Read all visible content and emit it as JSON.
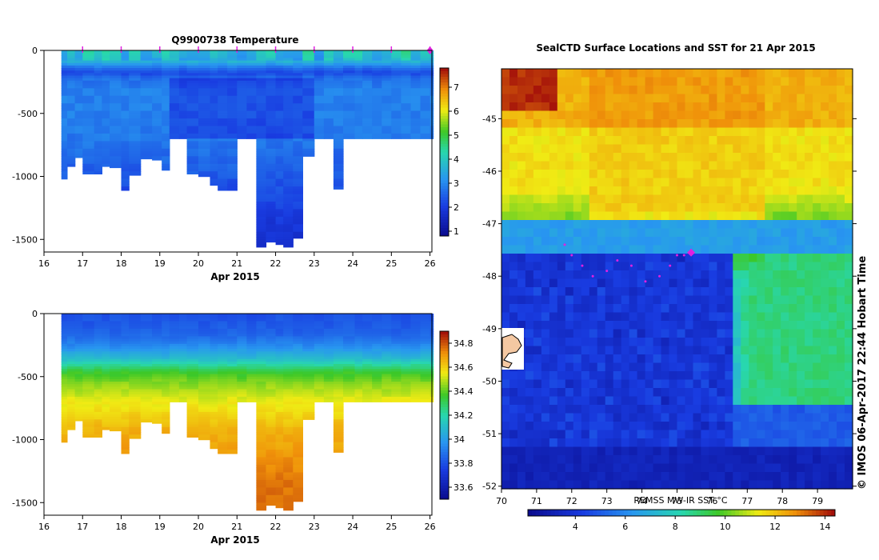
{
  "chart_data": [
    {
      "type": "heatmap",
      "title": "Q9900738  Temperature",
      "xlabel": "Apr 2015",
      "x_ticks": [
        "16",
        "17",
        "18",
        "19",
        "20",
        "21",
        "22",
        "23",
        "24",
        "25",
        "26"
      ],
      "xlim": [
        16,
        26.05
      ],
      "ylim": [
        -1600,
        0
      ],
      "y_ticks": [
        "0",
        "-500",
        "-1000",
        "-1500"
      ],
      "y_tick_values": [
        0,
        -500,
        -1000,
        -1500
      ],
      "colorbar": {
        "ticks": [
          "1",
          "2",
          "3",
          "4",
          "5",
          "6",
          "7"
        ],
        "tick_values": [
          1,
          2,
          3,
          4,
          5,
          6,
          7
        ],
        "range": [
          0.8,
          7.8
        ]
      },
      "profile_markers_days": [
        17,
        18,
        19,
        20,
        21,
        22,
        23,
        24,
        25,
        26
      ],
      "profile_times": [
        16.45,
        16.6,
        16.8,
        17.0,
        17.3,
        17.5,
        17.7,
        18.0,
        18.2,
        18.5,
        18.8,
        19.05,
        19.25,
        19.5,
        19.7,
        20.0,
        20.3,
        20.5,
        20.75,
        21.0,
        21.25,
        21.5,
        21.75,
        22.0,
        22.2,
        22.45,
        22.7,
        23.0,
        23.25,
        23.5,
        23.75,
        24.05,
        24.25,
        24.5,
        24.75,
        25.0,
        25.25,
        25.5,
        25.75,
        26.0
      ],
      "profile_max_depth": [
        1020,
        920,
        850,
        980,
        980,
        920,
        930,
        1110,
        990,
        860,
        870,
        950,
        700,
        700,
        980,
        1000,
        1070,
        1110,
        1110,
        700,
        700,
        1560,
        1520,
        1540,
        1560,
        1490,
        840,
        700,
        700,
        1100,
        700,
        700,
        700,
        700,
        700,
        700,
        700,
        700,
        700,
        700
      ],
      "temperature_profile_depths": [
        0,
        80,
        130,
        170,
        210,
        300,
        500,
        700,
        1000,
        1300,
        1600
      ],
      "temperature_profile_values": [
        3.9,
        3.6,
        2.7,
        2.2,
        2.7,
        2.9,
        2.9,
        2.8,
        2.4,
        2.0,
        1.7
      ]
    },
    {
      "type": "heatmap",
      "title": "",
      "xlabel": "Apr 2015",
      "x_ticks": [
        "16",
        "17",
        "18",
        "19",
        "20",
        "21",
        "22",
        "23",
        "24",
        "25",
        "26"
      ],
      "xlim": [
        16,
        26.05
      ],
      "ylim": [
        -1600,
        0
      ],
      "y_ticks": [
        "0",
        "-500",
        "-1000",
        "-1500"
      ],
      "y_tick_values": [
        0,
        -500,
        -1000,
        -1500
      ],
      "colorbar": {
        "ticks": [
          "33.6",
          "33.8",
          "34",
          "34.2",
          "34.4",
          "34.6",
          "34.8"
        ],
        "tick_values": [
          33.6,
          33.8,
          34.0,
          34.2,
          34.4,
          34.6,
          34.8
        ],
        "range": [
          33.5,
          34.9
        ]
      },
      "salinity_profile_depths": [
        0,
        150,
        250,
        350,
        450,
        550,
        700,
        900,
        1100,
        1300,
        1600
      ],
      "salinity_profile_values": [
        33.8,
        33.85,
        33.95,
        34.1,
        34.35,
        34.45,
        34.55,
        34.65,
        34.7,
        34.75,
        34.78
      ]
    },
    {
      "type": "heatmap",
      "title": "SealCTD Surface Locations and SST for 21 Apr 2015",
      "xlabel": "REMSS MW-IR SST °C",
      "x_ticks": [
        "70",
        "71",
        "72",
        "73",
        "74",
        "75",
        "76",
        "77",
        "78",
        "79"
      ],
      "x_tick_values": [
        70,
        71,
        72,
        73,
        74,
        75,
        76,
        77,
        78,
        79
      ],
      "xlim": [
        70,
        80
      ],
      "y_ticks": [
        "-45",
        "-46",
        "-47",
        "-48",
        "-49",
        "-50",
        "-51",
        "-52"
      ],
      "y_tick_values": [
        -45,
        -46,
        -47,
        -48,
        -49,
        -50,
        -51,
        -52
      ],
      "ylim": [
        -52.05,
        -44.05
      ],
      "colorbar": {
        "ticks": [
          "4",
          "6",
          "8",
          "10",
          "12",
          "14"
        ],
        "tick_values": [
          4,
          6,
          8,
          10,
          12,
          14
        ],
        "range": [
          2.1,
          14.4
        ]
      },
      "seal_position": {
        "lon": 75.4,
        "lat": -47.55
      },
      "seal_track_lons": [
        71.8,
        72.0,
        72.3,
        72.6,
        73.0,
        73.3,
        73.7,
        74.1,
        74.5,
        74.8,
        75.0,
        75.2
      ],
      "seal_track_lats": [
        -47.4,
        -47.6,
        -47.8,
        -48.0,
        -47.9,
        -47.7,
        -47.8,
        -48.1,
        -48.0,
        -47.8,
        -47.6,
        -47.6
      ],
      "sst_water_description": "",
      "credit": "© IMOS 06-Apr-2017 22:44 Hobart Time"
    }
  ]
}
